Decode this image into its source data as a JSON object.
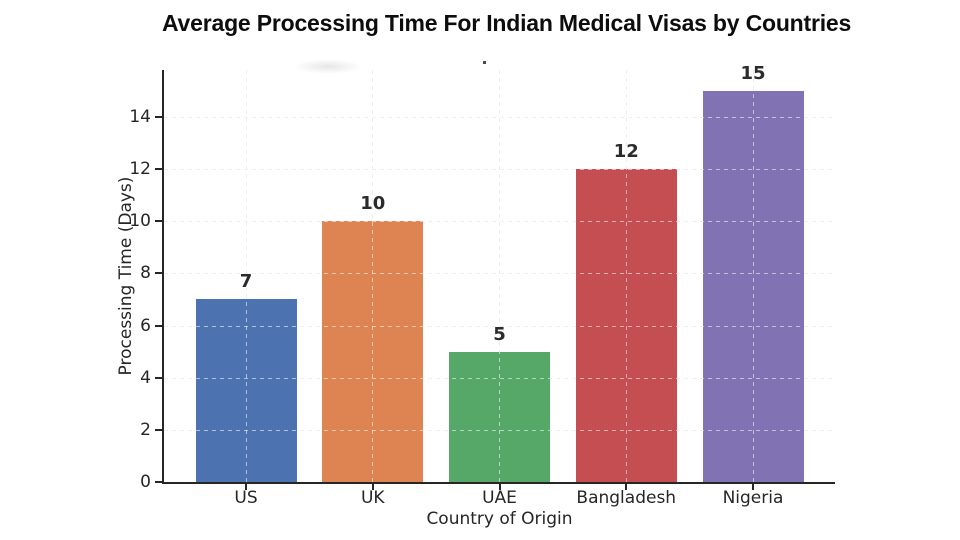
{
  "chart_data": {
    "type": "bar",
    "title": "Average Processing Time For Indian Medical Visas by Countries",
    "xlabel": "Country of Origin",
    "ylabel": "Processing Time (Days)",
    "categories": [
      "US",
      "UK",
      "UAE",
      "Bangladesh",
      "Nigeria"
    ],
    "values": [
      7,
      10,
      5,
      12,
      15
    ],
    "bar_labels": [
      "7",
      "10",
      "5",
      "12",
      "15"
    ],
    "bar_colors": [
      "#4C72B0",
      "#DD8452",
      "#55A868",
      "#C44E52",
      "#8172B3"
    ],
    "ylim": [
      0,
      15.8
    ],
    "yticks": [
      0,
      2,
      4,
      6,
      8,
      10,
      12,
      14
    ],
    "grid": "both-dashed",
    "legend": "none",
    "background": "#ffffff",
    "axis_color": "#262626"
  }
}
